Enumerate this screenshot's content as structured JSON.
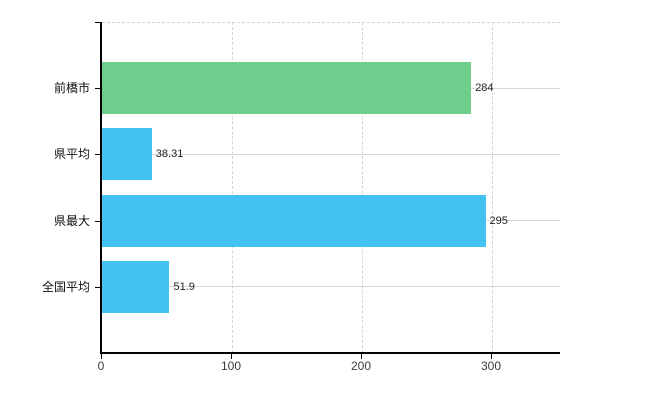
{
  "chart_data": {
    "type": "bar",
    "orientation": "horizontal",
    "title": "",
    "xlabel": "",
    "ylabel": "",
    "categories": [
      "前橋市",
      "県平均",
      "県最大",
      "全国平均"
    ],
    "values": [
      284,
      38.31,
      295,
      51.9
    ],
    "value_labels": [
      "284",
      "38.31",
      "295",
      "51.9"
    ],
    "bar_colors": [
      "#6fce8b",
      "#41c2f1",
      "#41c2f1",
      "#41c2f1"
    ],
    "x_ticks": [
      0,
      100,
      200,
      300
    ],
    "x_tick_labels": [
      "0",
      "100",
      "200",
      "300"
    ],
    "xlim": [
      0,
      353
    ],
    "grid": true,
    "legend": false,
    "colors": {
      "background": "#ffffff",
      "axis": "#000000",
      "gridline": "#d4d4d4",
      "bar_green": "#6fce8b",
      "bar_blue": "#41c2f1",
      "text": "#222222"
    }
  }
}
